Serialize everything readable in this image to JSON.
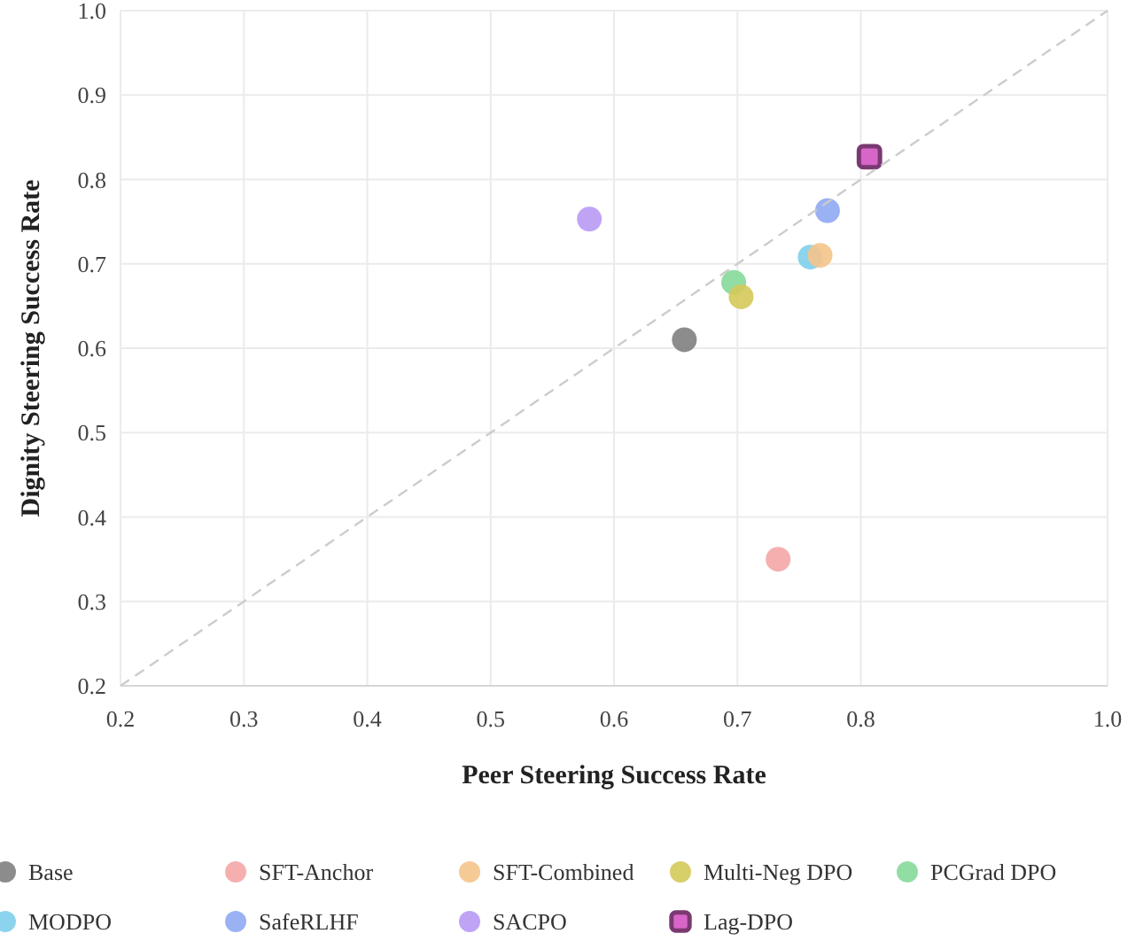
{
  "chart_data": {
    "type": "scatter",
    "xlabel": "Peer Steering Success Rate",
    "ylabel": "Dignity Steering Success Rate",
    "xlim": [
      0.2,
      1.0
    ],
    "xticks": [
      0.2,
      0.3,
      0.4,
      0.5,
      0.6,
      0.7,
      0.8,
      {
        "value": 1,
        "label": "1.0"
      }
    ],
    "ylim": [
      0.2,
      1.0
    ],
    "yticks": [
      0.2,
      0.3,
      0.4,
      0.5,
      0.6,
      0.7,
      0.8,
      0.9,
      {
        "value": 1,
        "label": "1.0"
      }
    ],
    "grid": true,
    "legend": "bottom",
    "marker": "circle",
    "series": [
      {
        "type": "line",
        "color": "#cccccc",
        "line_style": "dashed",
        "marker": "none",
        "x": [
          0.2,
          1.0
        ],
        "values": [
          0.2,
          1.0
        ]
      },
      {
        "name": "Base",
        "color": "#808080",
        "x": [
          0.657
        ],
        "values": [
          0.61
        ]
      },
      {
        "name": "SFT-Anchor",
        "color": "#f4a6a6",
        "x": [
          0.733
        ],
        "values": [
          0.35
        ]
      },
      {
        "name": "SFT-Combined",
        "color": "#f5c48a",
        "x": [
          0.767
        ],
        "values": [
          0.71
        ]
      },
      {
        "name": "Multi-Neg DPO",
        "color": "#d4c95a",
        "x": [
          0.703
        ],
        "values": [
          0.661
        ]
      },
      {
        "name": "PCGrad DPO",
        "color": "#86d99a",
        "x": [
          0.697
        ],
        "values": [
          0.678
        ]
      },
      {
        "name": "MODPO",
        "color": "#7fcfec",
        "x": [
          0.759
        ],
        "values": [
          0.708
        ]
      },
      {
        "name": "SafeRLHF",
        "color": "#8fa8f2",
        "x": [
          0.773
        ],
        "values": [
          0.763
        ]
      },
      {
        "name": "SACPO",
        "color": "#b89af5",
        "x": [
          0.58
        ],
        "values": [
          0.753
        ]
      },
      {
        "name": "Lag-DPO",
        "color": "#d865c8",
        "marker": "square",
        "x": [
          0.807
        ],
        "values": [
          0.827
        ]
      }
    ]
  }
}
